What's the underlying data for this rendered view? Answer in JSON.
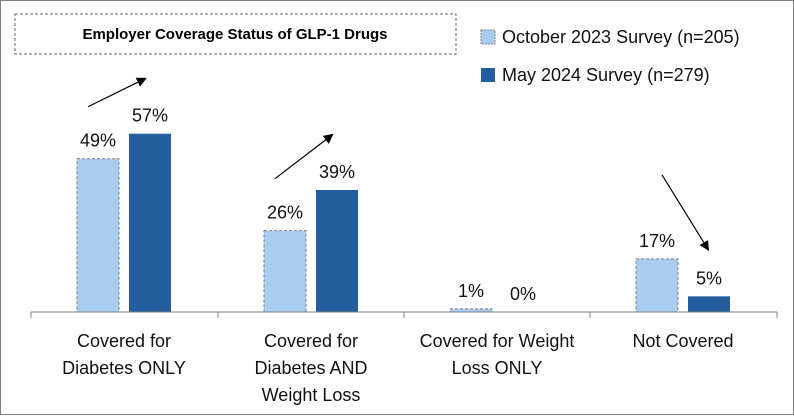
{
  "chart_data": {
    "type": "bar",
    "title": "Employer Coverage Status of GLP-1 Drugs",
    "xlabel": "",
    "ylabel": "",
    "ylim": [
      0,
      60
    ],
    "grid": false,
    "legend_position": "top-right",
    "categories": [
      [
        "Covered for",
        "Diabetes ONLY"
      ],
      [
        "Covered for",
        "Diabetes AND",
        "Weight Loss"
      ],
      [
        "Covered for Weight",
        "Loss ONLY"
      ],
      [
        "Not Covered"
      ]
    ],
    "series": [
      {
        "name": "October 2023 Survey (n=205)",
        "values": [
          49,
          26,
          1,
          17
        ],
        "labels": [
          "49%",
          "26%",
          "1%",
          "17%"
        ],
        "color": "#a9cdef",
        "border": "dashed"
      },
      {
        "name": "May 2024 Survey (n=279)",
        "values": [
          57,
          39,
          0,
          5
        ],
        "labels": [
          "57%",
          "39%",
          "0%",
          "5%"
        ],
        "color": "#245e9f",
        "border": "none"
      }
    ],
    "trend_arrows": [
      "up",
      "up",
      "none",
      "down"
    ]
  }
}
